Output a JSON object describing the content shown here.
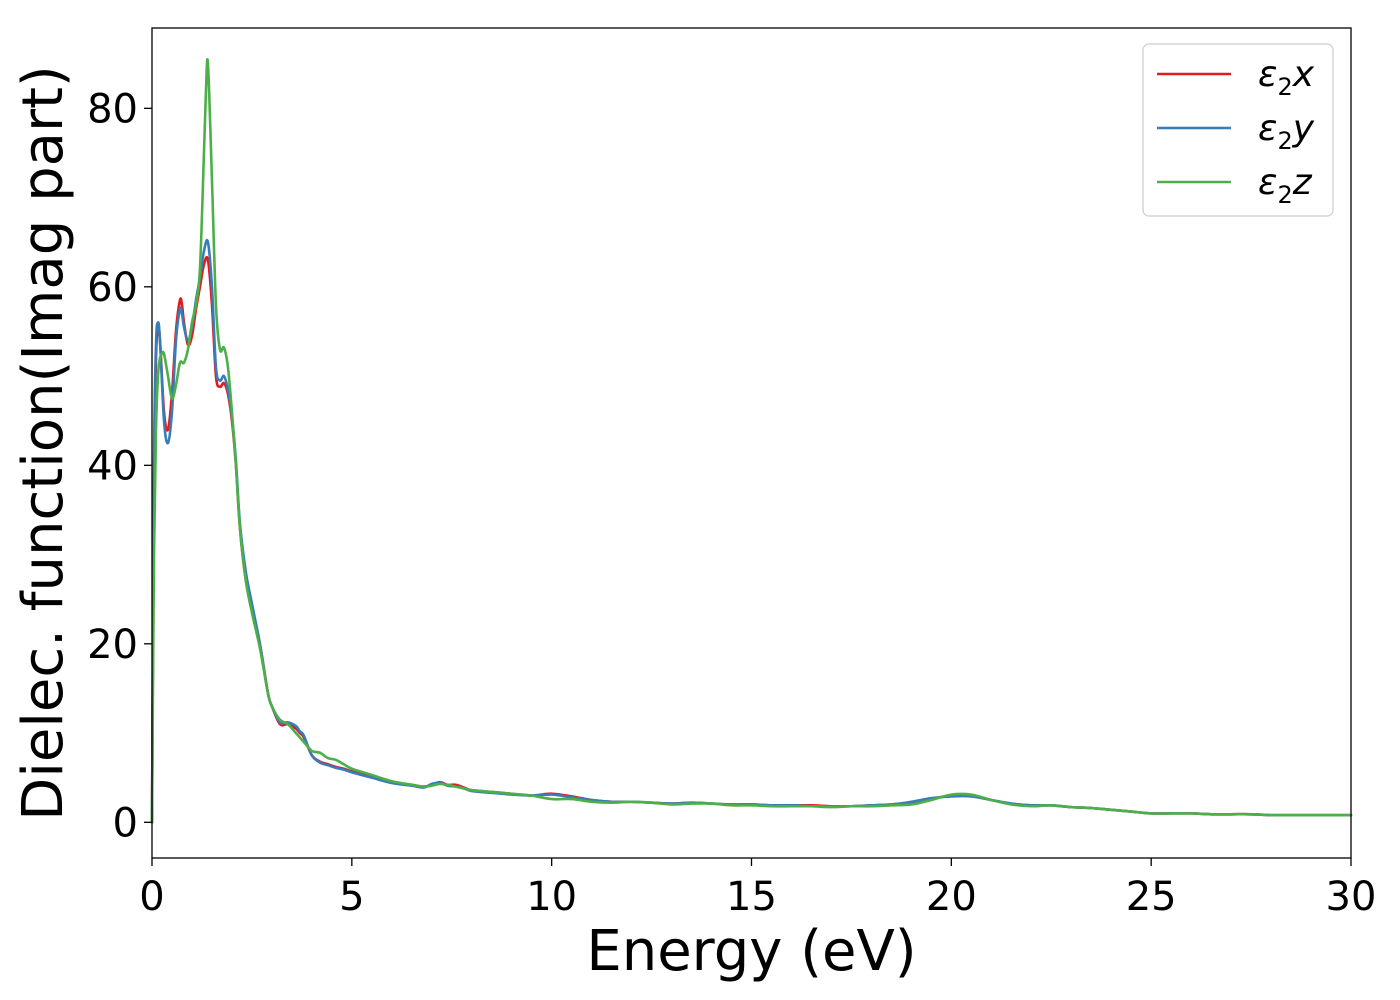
{
  "chart_data": {
    "type": "line",
    "title": "",
    "xlabel": "Energy (eV)",
    "ylabel": "Dielec. function(Imag part)",
    "xlim": [
      0,
      30
    ],
    "ylim": [
      -4,
      89
    ],
    "xticks": [
      0,
      5,
      10,
      15,
      20,
      25,
      30
    ],
    "yticks": [
      0,
      20,
      40,
      60,
      80
    ],
    "xtick_labels": [
      "0",
      "5",
      "10",
      "15",
      "20",
      "25",
      "30"
    ],
    "ytick_labels": [
      "0",
      "20",
      "40",
      "60",
      "80"
    ],
    "grid": false,
    "legend_position": "top-right",
    "series": [
      {
        "name": "ε₂x",
        "legend": {
          "base": "ε",
          "sub": "2",
          "suffix": "x"
        },
        "color": "#e41a1c",
        "x": [
          0.0,
          0.05,
          0.1,
          0.15,
          0.2,
          0.3,
          0.4,
          0.5,
          0.6,
          0.7,
          0.75,
          0.8,
          0.9,
          1.0,
          1.1,
          1.2,
          1.3,
          1.4,
          1.5,
          1.6,
          1.7,
          1.8,
          1.9,
          2.0,
          2.1,
          2.2,
          2.35,
          2.5,
          2.7,
          2.9,
          3.0,
          3.2,
          3.4,
          3.6,
          3.7,
          3.8,
          4.0,
          4.2,
          4.4,
          4.6,
          4.8,
          5.0,
          5.5,
          6.0,
          6.5,
          6.8,
          7.0,
          7.2,
          7.4,
          7.6,
          7.8,
          8.0,
          8.5,
          9.0,
          9.5,
          10.0,
          10.5,
          11.0,
          11.5,
          12.0,
          12.5,
          13.0,
          13.5,
          14.0,
          14.5,
          15.0,
          15.5,
          16.0,
          16.5,
          17.0,
          17.5,
          18.0,
          18.5,
          19.0,
          19.5,
          20.0,
          20.5,
          21.0,
          21.5,
          22.0,
          22.5,
          23.0,
          23.5,
          24.0,
          24.5,
          25.0,
          25.5,
          26.0,
          26.5,
          27.0,
          27.5,
          28.0,
          28.5,
          29.0,
          29.5,
          30.0
        ],
        "y": [
          0.0,
          38.0,
          52.0,
          55.5,
          54.0,
          46.0,
          44.0,
          48.0,
          55.0,
          58.5,
          58.0,
          56.0,
          53.5,
          54.5,
          57.5,
          60.0,
          62.5,
          63.0,
          58.0,
          50.0,
          48.8,
          49.2,
          48.0,
          45.0,
          40.0,
          33.0,
          27.0,
          24.0,
          20.0,
          14.5,
          13.0,
          11.0,
          11.0,
          10.5,
          10.0,
          9.5,
          7.5,
          6.8,
          6.5,
          6.2,
          6.0,
          5.7,
          5.1,
          4.5,
          4.2,
          4.0,
          4.2,
          4.5,
          4.2,
          4.2,
          3.9,
          3.6,
          3.4,
          3.2,
          3.0,
          3.2,
          2.9,
          2.5,
          2.3,
          2.3,
          2.2,
          2.1,
          2.2,
          2.1,
          2.0,
          2.0,
          1.9,
          1.9,
          1.9,
          1.8,
          1.8,
          1.9,
          2.0,
          2.2,
          2.6,
          3.0,
          3.0,
          2.5,
          2.1,
          1.9,
          1.9,
          1.7,
          1.6,
          1.4,
          1.2,
          1.0,
          1.0,
          1.0,
          0.9,
          0.9,
          0.9,
          0.8,
          0.8,
          0.8,
          0.8,
          0.8
        ]
      },
      {
        "name": "ε₂y",
        "legend": {
          "base": "ε",
          "sub": "2",
          "suffix": "y"
        },
        "color": "#377eb8",
        "x": [
          0.0,
          0.05,
          0.1,
          0.15,
          0.2,
          0.3,
          0.4,
          0.5,
          0.6,
          0.7,
          0.75,
          0.8,
          0.9,
          1.0,
          1.1,
          1.2,
          1.3,
          1.4,
          1.5,
          1.6,
          1.7,
          1.8,
          1.9,
          2.0,
          2.1,
          2.2,
          2.35,
          2.5,
          2.7,
          2.9,
          3.0,
          3.2,
          3.4,
          3.6,
          3.7,
          3.8,
          4.0,
          4.2,
          4.4,
          4.6,
          4.8,
          5.0,
          5.5,
          6.0,
          6.5,
          6.8,
          7.0,
          7.2,
          7.4,
          7.6,
          7.8,
          8.0,
          8.5,
          9.0,
          9.5,
          10.0,
          10.5,
          11.0,
          11.5,
          12.0,
          12.5,
          13.0,
          13.5,
          14.0,
          14.5,
          15.0,
          15.5,
          16.0,
          16.5,
          17.0,
          17.5,
          18.0,
          18.5,
          19.0,
          19.5,
          20.0,
          20.5,
          21.0,
          21.5,
          22.0,
          22.5,
          23.0,
          23.5,
          24.0,
          24.5,
          25.0,
          25.5,
          26.0,
          26.5,
          27.0,
          27.5,
          28.0,
          28.5,
          29.0,
          29.5,
          30.0
        ],
        "y": [
          0.0,
          40.0,
          53.5,
          56.0,
          54.0,
          45.0,
          42.5,
          46.0,
          54.0,
          57.5,
          57.0,
          55.5,
          54.0,
          55.5,
          58.5,
          61.0,
          64.0,
          65.0,
          60.0,
          51.0,
          49.5,
          50.0,
          48.5,
          45.5,
          40.5,
          33.5,
          28.0,
          24.5,
          20.0,
          14.5,
          13.0,
          11.2,
          11.2,
          10.8,
          10.2,
          9.7,
          7.5,
          6.7,
          6.4,
          6.1,
          5.9,
          5.6,
          5.0,
          4.4,
          4.1,
          3.9,
          4.3,
          4.4,
          4.1,
          4.0,
          3.8,
          3.5,
          3.3,
          3.1,
          3.0,
          3.1,
          2.8,
          2.5,
          2.3,
          2.3,
          2.2,
          2.1,
          2.2,
          2.1,
          2.0,
          2.0,
          1.9,
          1.9,
          1.8,
          1.8,
          1.8,
          1.9,
          2.0,
          2.3,
          2.7,
          2.9,
          2.9,
          2.5,
          2.1,
          1.9,
          1.9,
          1.7,
          1.6,
          1.4,
          1.2,
          1.0,
          1.0,
          1.0,
          0.9,
          0.9,
          0.9,
          0.8,
          0.8,
          0.8,
          0.8,
          0.8
        ]
      },
      {
        "name": "ε₂z",
        "legend": {
          "base": "ε",
          "sub": "2",
          "suffix": "z"
        },
        "color": "#4daf4a",
        "x": [
          0.0,
          0.05,
          0.1,
          0.15,
          0.2,
          0.25,
          0.3,
          0.4,
          0.5,
          0.6,
          0.7,
          0.8,
          0.9,
          1.0,
          1.1,
          1.2,
          1.3,
          1.35,
          1.4,
          1.5,
          1.6,
          1.7,
          1.8,
          1.9,
          2.0,
          2.1,
          2.2,
          2.35,
          2.5,
          2.7,
          2.9,
          3.0,
          3.2,
          3.4,
          3.6,
          3.7,
          3.8,
          4.0,
          4.2,
          4.4,
          4.6,
          4.8,
          5.0,
          5.5,
          6.0,
          6.5,
          6.8,
          7.0,
          7.2,
          7.4,
          7.6,
          7.8,
          8.0,
          8.5,
          9.0,
          9.5,
          10.0,
          10.5,
          11.0,
          11.5,
          12.0,
          12.5,
          13.0,
          13.5,
          14.0,
          14.5,
          15.0,
          15.5,
          16.0,
          16.5,
          17.0,
          17.5,
          18.0,
          18.5,
          19.0,
          19.5,
          20.0,
          20.5,
          21.0,
          21.5,
          22.0,
          22.5,
          23.0,
          23.5,
          24.0,
          24.5,
          25.0,
          25.5,
          26.0,
          26.5,
          27.0,
          27.5,
          28.0,
          28.5,
          29.0,
          29.5,
          30.0
        ],
        "y": [
          0.0,
          30.0,
          44.0,
          50.0,
          52.0,
          52.5,
          52.5,
          50.0,
          47.5,
          49.0,
          51.5,
          51.5,
          53.0,
          56.0,
          58.0,
          62.0,
          75.0,
          82.0,
          85.0,
          72.0,
          58.0,
          53.0,
          53.2,
          51.0,
          46.0,
          40.0,
          33.0,
          27.0,
          23.5,
          19.5,
          14.5,
          13.0,
          11.5,
          11.0,
          10.0,
          9.5,
          9.0,
          8.0,
          7.8,
          7.2,
          7.0,
          6.5,
          6.0,
          5.3,
          4.6,
          4.2,
          4.0,
          4.1,
          4.3,
          4.2,
          4.0,
          3.8,
          3.6,
          3.4,
          3.2,
          3.0,
          2.6,
          2.6,
          2.3,
          2.2,
          2.3,
          2.2,
          2.0,
          2.1,
          2.1,
          1.9,
          1.9,
          1.8,
          1.8,
          1.8,
          1.7,
          1.8,
          1.8,
          1.9,
          2.0,
          2.5,
          3.1,
          3.1,
          2.5,
          2.0,
          1.8,
          1.9,
          1.7,
          1.6,
          1.4,
          1.2,
          1.0,
          1.0,
          1.0,
          0.9,
          0.9,
          0.9,
          0.8,
          0.8,
          0.8,
          0.8,
          0.8
        ]
      }
    ]
  }
}
